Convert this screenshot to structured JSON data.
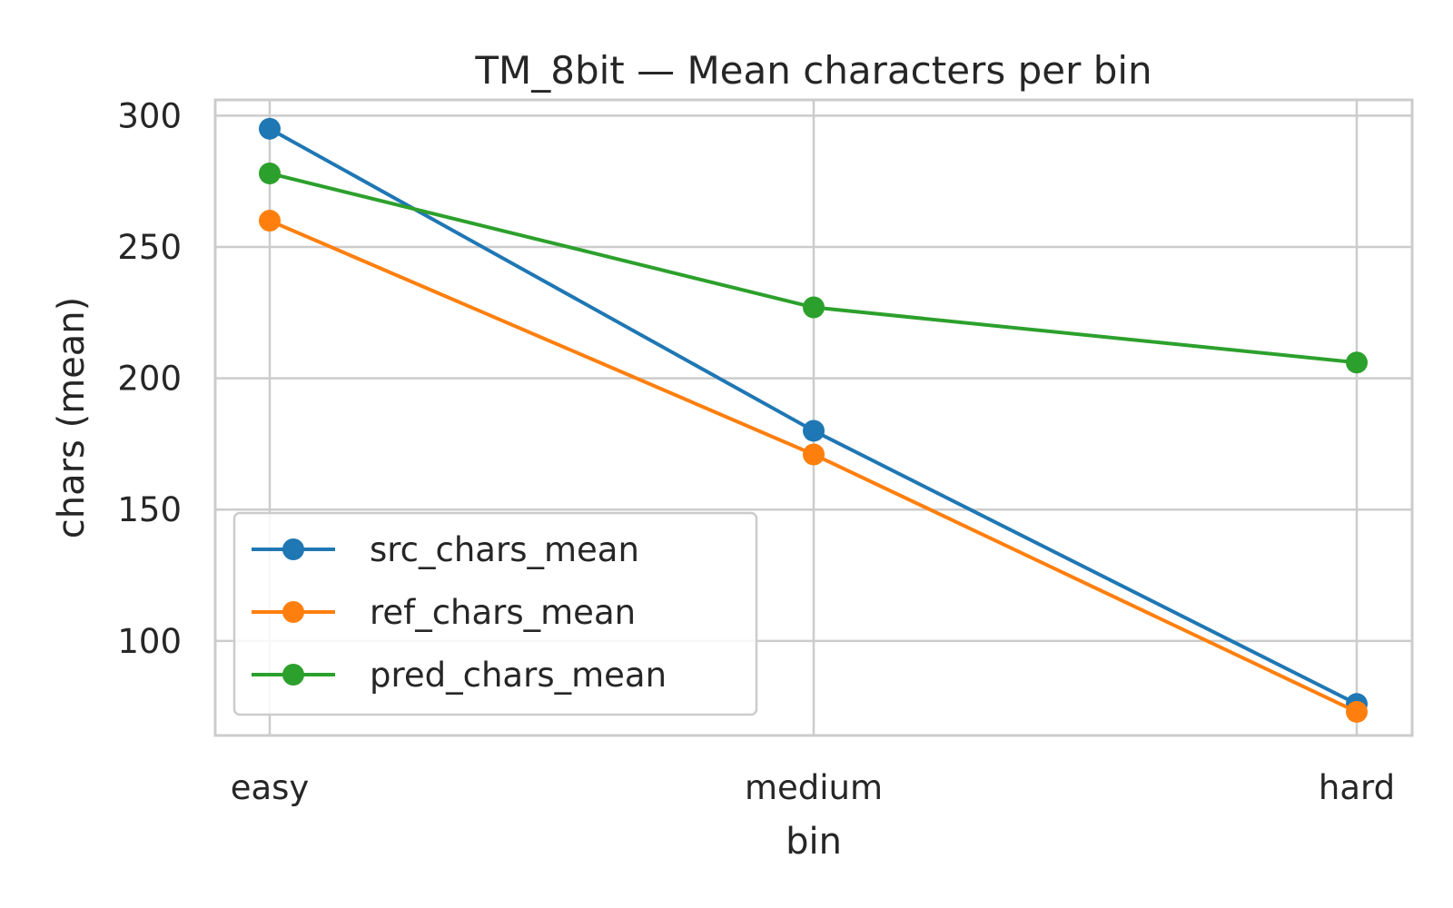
{
  "chart_data": {
    "type": "line",
    "title": "TM_8bit — Mean characters per bin",
    "xlabel": "bin",
    "ylabel": "chars (mean)",
    "categories": [
      "easy",
      "medium",
      "hard"
    ],
    "series": [
      {
        "name": "src_chars_mean",
        "values": [
          295,
          180,
          76
        ],
        "color": "#1f77b4"
      },
      {
        "name": "ref_chars_mean",
        "values": [
          260,
          171,
          73
        ],
        "color": "#ff7f0e"
      },
      {
        "name": "pred_chars_mean",
        "values": [
          278,
          227,
          206
        ],
        "color": "#2ca02c"
      }
    ],
    "ylim": [
      64,
      306
    ],
    "yticks": [
      100,
      150,
      200,
      250,
      300
    ],
    "ytick_labels": [
      "100",
      "150",
      "200",
      "250",
      "300"
    ],
    "grid": true,
    "legend": "lower-left",
    "marker": "circle"
  }
}
